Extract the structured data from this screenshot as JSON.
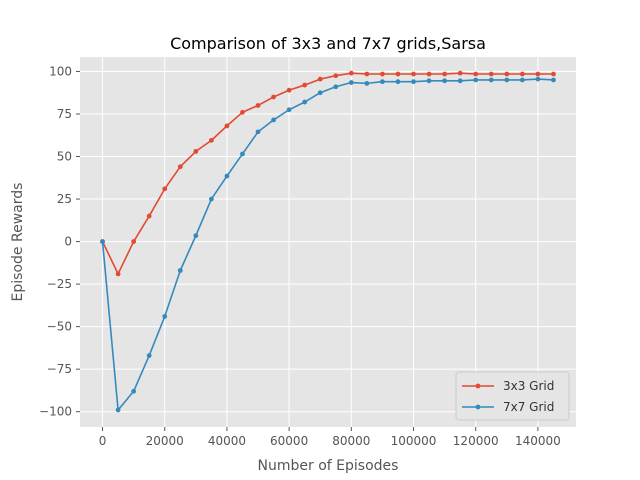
{
  "chart_data": {
    "type": "line",
    "title": "Comparison of 3x3 and 7x7 grids,Sarsa",
    "xlabel": "Number of Episodes",
    "ylabel": "Episode Rewards",
    "xlim": [
      -7250,
      152250
    ],
    "ylim": [
      -109,
      108.5
    ],
    "xticks": [
      0,
      20000,
      40000,
      60000,
      80000,
      100000,
      120000,
      140000
    ],
    "yticks": [
      -100,
      -75,
      -50,
      -25,
      0,
      25,
      50,
      75,
      100
    ],
    "grid": true,
    "legend_position": "lower-right",
    "x": [
      0,
      5000,
      10000,
      15000,
      20000,
      25000,
      30000,
      35000,
      40000,
      45000,
      50000,
      55000,
      60000,
      65000,
      70000,
      75000,
      80000,
      85000,
      90000,
      95000,
      100000,
      105000,
      110000,
      115000,
      120000,
      125000,
      130000,
      135000,
      140000,
      145000
    ],
    "series": [
      {
        "name": "3x3 Grid",
        "color": "#E24A33",
        "values": [
          0,
          -19,
          0,
          15,
          31,
          44,
          53,
          59.5,
          68,
          76,
          80,
          85,
          89,
          92,
          95.5,
          97.5,
          99,
          98.5,
          98.5,
          98.5,
          98.5,
          98.5,
          98.5,
          99,
          98.5,
          98.5,
          98.5,
          98.5,
          98.5,
          98.5
        ]
      },
      {
        "name": "7x7 Grid",
        "color": "#348ABD",
        "values": [
          0,
          -99,
          -88,
          -67,
          -44,
          -17,
          3.5,
          25,
          38.5,
          51.5,
          64.5,
          71.5,
          77.5,
          82,
          87.5,
          91,
          93.5,
          93,
          94,
          94,
          94,
          94.5,
          94.5,
          94.5,
          95,
          95,
          95,
          95,
          95.5,
          95
        ]
      }
    ]
  }
}
